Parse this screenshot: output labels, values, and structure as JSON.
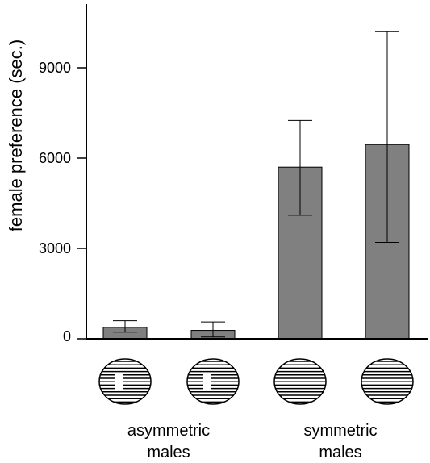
{
  "chart_data": {
    "type": "bar",
    "ylabel": "female preference (sec.)",
    "ylim": [
      0,
      10500
    ],
    "yticks": [
      0,
      3000,
      6000,
      9000
    ],
    "bars": [
      {
        "value": 380,
        "err_low": 220,
        "err_high": 600,
        "stimulus": "asymmetric-stripes-icon"
      },
      {
        "value": 280,
        "err_low": 60,
        "err_high": 560,
        "stimulus": "asymmetric-stripes-icon"
      },
      {
        "value": 5700,
        "err_low": 4100,
        "err_high": 7250,
        "stimulus": "symmetric-stripes-icon"
      },
      {
        "value": 6450,
        "err_low": 3200,
        "err_high": 10200,
        "stimulus": "symmetric-stripes-icon"
      }
    ],
    "groups": [
      {
        "label_line1": "asymmetric",
        "label_line2": "males",
        "bars": [
          0,
          1
        ]
      },
      {
        "label_line1": "symmetric",
        "label_line2": "males",
        "bars": [
          2,
          3
        ]
      }
    ],
    "bar_color": "#808080",
    "grid": false,
    "legend": "none"
  }
}
